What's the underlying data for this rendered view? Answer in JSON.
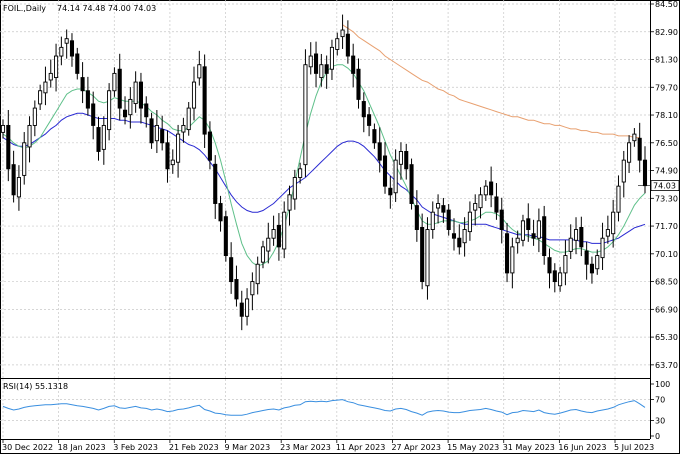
{
  "chart_data": [
    {
      "type": "candlestick",
      "symbol_label": "FOIL.,Daily",
      "ohlc_label": "74.14 74.48 74.00 74.03",
      "last_price": 74.03,
      "last_price_label": "74.03",
      "ylim": [
        63.0,
        84.5
      ],
      "price_ticks": [
        "84.50",
        "82.90",
        "81.30",
        "79.70",
        "78.10",
        "76.50",
        "74.90",
        "73.30",
        "71.70",
        "70.10",
        "68.50",
        "66.90",
        "65.30",
        "63.70"
      ],
      "x_tick_labels": [
        "30 Dec 2022",
        "18 Jan 2023",
        "3 Feb 2023",
        "21 Feb 2023",
        "9 Mar 2023",
        "23 Mar 2023",
        "11 Apr 2023",
        "27 Apr 2023",
        "15 May 2023",
        "31 May 2023",
        "16 Jun 2023",
        "5 Jul 2023"
      ],
      "grid": true,
      "colors": {
        "up": "#ffffff",
        "down": "#000000",
        "ma_fast": "#5fc08a",
        "ma_mid": "#2a2ad2",
        "ma_slow": "#e8a070"
      },
      "close": [
        77.5,
        75.0,
        73.5,
        74.5,
        76.5,
        77.5,
        78.5,
        79.5,
        80.0,
        80.5,
        81.5,
        82.0,
        82.5,
        81.5,
        80.5,
        79.5,
        78.5,
        77.5,
        76.0,
        77.5,
        79.5,
        80.5,
        78.5,
        78.0,
        79.0,
        80.0,
        78.5,
        78.0,
        76.5,
        77.5,
        76.5,
        75.0,
        75.5,
        77.0,
        77.5,
        78.5,
        80.0,
        81.0,
        77.0,
        75.5,
        73.0,
        72.0,
        70.0,
        68.5,
        67.5,
        66.5,
        67.5,
        68.5,
        69.5,
        70.5,
        71.0,
        71.5,
        70.5,
        72.5,
        73.5,
        74.5,
        75.0,
        81.0,
        81.5,
        80.5,
        81.0,
        80.5,
        82.0,
        82.5,
        83.0,
        81.5,
        80.5,
        79.0,
        78.0,
        77.5,
        76.5,
        75.5,
        74.0,
        73.5,
        75.5,
        76.0,
        75.0,
        73.0,
        71.5,
        68.5,
        71.5,
        72.5,
        73.0,
        72.5,
        71.5,
        71.0,
        70.5,
        71.5,
        72.5,
        73.0,
        73.5,
        74.0,
        73.5,
        72.5,
        71.5,
        69.0,
        70.5,
        71.0,
        72.0,
        71.5,
        71.0,
        72.0,
        70.0,
        69.0,
        68.5,
        69.0,
        70.0,
        71.0,
        71.5,
        70.5,
        69.5,
        69.0,
        70.0,
        71.0,
        71.5,
        72.5,
        74.0,
        75.5,
        76.5,
        77.0,
        75.5,
        74.03
      ],
      "ma_fast": [
        77.0,
        76.8,
        76.5,
        76.3,
        76.2,
        76.3,
        76.5,
        76.8,
        77.3,
        77.8,
        78.3,
        78.8,
        79.3,
        79.5,
        79.6,
        79.6,
        79.4,
        79.2,
        78.9,
        78.8,
        78.9,
        79.1,
        79.0,
        78.9,
        78.9,
        78.9,
        78.8,
        78.6,
        78.3,
        78.1,
        77.8,
        77.6,
        77.3,
        77.2,
        77.2,
        77.4,
        77.7,
        78.0,
        77.8,
        77.3,
        76.5,
        75.5,
        74.3,
        73.0,
        71.8,
        70.7,
        70.0,
        69.6,
        69.4,
        69.5,
        69.7,
        70.2,
        70.8,
        71.7,
        72.8,
        74.2,
        75.6,
        77.0,
        78.2,
        79.2,
        80.0,
        80.6,
        80.9,
        81.0,
        81.0,
        80.8,
        80.5,
        80.0,
        79.5,
        78.8,
        78.1,
        77.4,
        76.6,
        75.8,
        75.2,
        74.6,
        74.0,
        73.3,
        72.6,
        72.0,
        71.8,
        71.8,
        71.9,
        72.0,
        72.0,
        72.0,
        71.9,
        71.9,
        72.0,
        72.1,
        72.3,
        72.5,
        72.5,
        72.4,
        72.2,
        71.8,
        71.5,
        71.3,
        71.2,
        71.1,
        71.0,
        70.9,
        70.7,
        70.5,
        70.3,
        70.2,
        70.2,
        70.3,
        70.4,
        70.4,
        70.3,
        70.2,
        70.2,
        70.3,
        70.5,
        70.8,
        71.2,
        71.7,
        72.3,
        72.9,
        73.3,
        73.6
      ],
      "ma_mid": [
        76.8,
        76.6,
        76.4,
        76.3,
        76.3,
        76.4,
        76.6,
        76.8,
        77.0,
        77.3,
        77.5,
        77.8,
        78.0,
        78.1,
        78.2,
        78.2,
        78.1,
        78.0,
        77.9,
        77.9,
        77.9,
        77.9,
        77.8,
        77.8,
        77.7,
        77.7,
        77.7,
        77.6,
        77.5,
        77.4,
        77.3,
        77.2,
        77.0,
        76.8,
        76.6,
        76.4,
        76.3,
        76.1,
        75.8,
        75.4,
        75.0,
        74.5,
        74.0,
        73.5,
        73.1,
        72.8,
        72.6,
        72.5,
        72.5,
        72.6,
        72.8,
        73.0,
        73.3,
        73.6,
        73.9,
        74.1,
        74.3,
        74.5,
        74.8,
        75.1,
        75.4,
        75.7,
        76.0,
        76.3,
        76.5,
        76.6,
        76.6,
        76.5,
        76.3,
        76.0,
        75.7,
        75.3,
        74.9,
        74.6,
        74.3,
        74.0,
        73.8,
        73.5,
        73.2,
        72.8,
        72.6,
        72.4,
        72.3,
        72.2,
        72.1,
        72.0,
        71.9,
        71.8,
        71.8,
        71.8,
        71.8,
        71.8,
        71.7,
        71.6,
        71.5,
        71.4,
        71.3,
        71.2,
        71.2,
        71.2,
        71.1,
        71.1,
        71.0,
        70.9,
        70.9,
        70.9,
        70.9,
        70.9,
        70.9,
        70.8,
        70.8,
        70.7,
        70.7,
        70.7,
        70.8,
        70.9,
        71.0,
        71.2,
        71.4,
        71.6,
        71.7,
        71.8
      ],
      "ma_slow": [
        null,
        null,
        null,
        null,
        null,
        null,
        null,
        null,
        null,
        null,
        null,
        null,
        null,
        null,
        null,
        null,
        null,
        null,
        null,
        null,
        null,
        null,
        null,
        null,
        null,
        null,
        null,
        null,
        null,
        null,
        null,
        null,
        null,
        null,
        null,
        null,
        null,
        null,
        null,
        null,
        null,
        null,
        null,
        null,
        null,
        null,
        null,
        null,
        null,
        null,
        null,
        null,
        null,
        null,
        null,
        null,
        null,
        null,
        null,
        null,
        null,
        null,
        null,
        null,
        83.3,
        83.1,
        82.9,
        82.6,
        82.4,
        82.2,
        82.0,
        81.8,
        81.5,
        81.3,
        81.1,
        80.9,
        80.7,
        80.5,
        80.3,
        80.1,
        80.0,
        79.8,
        79.6,
        79.5,
        79.3,
        79.2,
        79.0,
        78.9,
        78.8,
        78.7,
        78.6,
        78.5,
        78.4,
        78.3,
        78.2,
        78.1,
        78.0,
        78.0,
        77.9,
        77.8,
        77.8,
        77.7,
        77.6,
        77.6,
        77.5,
        77.5,
        77.4,
        77.3,
        77.3,
        77.2,
        77.2,
        77.1,
        77.1,
        77.0,
        77.0,
        77.0,
        76.9,
        76.9,
        76.9,
        76.8,
        76.8
      ]
    },
    {
      "type": "line",
      "title": "RSI(14) 55.1318",
      "ylim": [
        0,
        100
      ],
      "y_ticks": [
        "100",
        "70",
        "30",
        "0"
      ],
      "levels": [
        70,
        30
      ],
      "color": "#3a8fe0",
      "values": [
        57,
        53,
        50,
        52,
        55,
        57,
        58,
        59,
        60,
        60,
        61,
        62,
        62,
        60,
        58,
        57,
        55,
        53,
        50,
        53,
        57,
        58,
        54,
        53,
        55,
        57,
        54,
        53,
        50,
        52,
        50,
        47,
        48,
        51,
        52,
        54,
        57,
        59,
        51,
        48,
        44,
        43,
        41,
        40,
        40,
        40,
        42,
        45,
        47,
        49,
        51,
        52,
        50,
        54,
        56,
        59,
        60,
        66,
        67,
        66,
        67,
        66,
        68,
        69,
        70,
        66,
        64,
        60,
        58,
        56,
        54,
        52,
        49,
        48,
        52,
        53,
        51,
        47,
        44,
        40,
        46,
        48,
        49,
        48,
        46,
        45,
        45,
        47,
        49,
        50,
        51,
        53,
        51,
        48,
        46,
        41,
        45,
        46,
        49,
        48,
        47,
        50,
        45,
        43,
        42,
        44,
        47,
        50,
        51,
        48,
        46,
        45,
        48,
        50,
        52,
        55,
        60,
        63,
        66,
        68,
        62,
        55
      ]
    }
  ]
}
